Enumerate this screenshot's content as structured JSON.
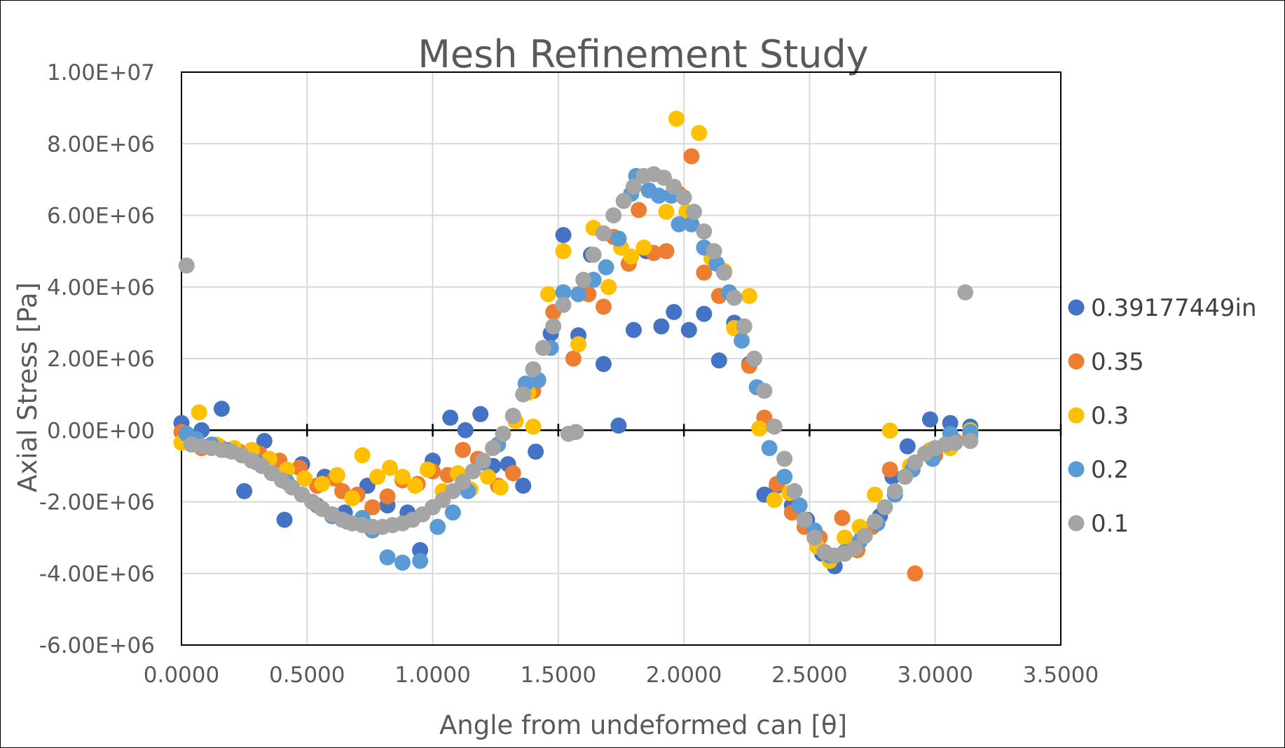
{
  "chart_data": {
    "type": "scatter",
    "title": "Mesh Refinement Study",
    "xlabel": "Angle from undeformed can [θ]",
    "ylabel": "Axial Stress [Pa]",
    "xlim": [
      0,
      3.5
    ],
    "ylim": [
      -6000000,
      10000000
    ],
    "x_tick_labels": [
      "0.0000",
      "0.5000",
      "1.0000",
      "1.5000",
      "2.0000",
      "2.5000",
      "3.0000",
      "3.5000"
    ],
    "y_tick_labels": [
      "1.00E+07",
      "8.00E+06",
      "6.00E+06",
      "4.00E+06",
      "2.00E+06",
      "0.00E+00",
      "-2.00E+06",
      "-4.00E+06",
      "-6.00E+06"
    ],
    "x_ticks": [
      0,
      0.5,
      1.0,
      1.5,
      2.0,
      2.5,
      3.0,
      3.5
    ],
    "y_ticks": [
      10000000,
      8000000,
      6000000,
      4000000,
      2000000,
      0,
      -2000000,
      -4000000,
      -6000000
    ],
    "grid": true,
    "legend_position": "right",
    "series": [
      {
        "name": "0.39177449in",
        "color": "#4472C4",
        "points": [
          [
            0.0,
            200000
          ],
          [
            0.08,
            0
          ],
          [
            0.16,
            600000
          ],
          [
            0.25,
            -1700000
          ],
          [
            0.33,
            -300000
          ],
          [
            0.41,
            -2500000
          ],
          [
            0.48,
            -950000
          ],
          [
            0.57,
            -1300000
          ],
          [
            0.65,
            -2300000
          ],
          [
            0.74,
            -1550000
          ],
          [
            0.82,
            -2100000
          ],
          [
            0.9,
            -2300000
          ],
          [
            0.95,
            -3350000
          ],
          [
            1.0,
            -850000
          ],
          [
            1.07,
            350000
          ],
          [
            1.13,
            0
          ],
          [
            1.19,
            450000
          ],
          [
            1.24,
            -1000000
          ],
          [
            1.3,
            -950000
          ],
          [
            1.36,
            -1550000
          ],
          [
            1.41,
            -600000
          ],
          [
            1.47,
            2700000
          ],
          [
            1.52,
            5450000
          ],
          [
            1.58,
            2650000
          ],
          [
            1.63,
            4900000
          ],
          [
            1.68,
            1850000
          ],
          [
            1.74,
            130000
          ],
          [
            1.8,
            2800000
          ],
          [
            1.85,
            5000000
          ],
          [
            1.91,
            2900000
          ],
          [
            1.96,
            3300000
          ],
          [
            2.02,
            2800000
          ],
          [
            2.08,
            3250000
          ],
          [
            2.14,
            1950000
          ],
          [
            2.2,
            3000000
          ],
          [
            2.26,
            1850000
          ],
          [
            2.32,
            -1800000
          ],
          [
            2.37,
            -1550000
          ],
          [
            2.43,
            -2100000
          ],
          [
            2.49,
            -2500000
          ],
          [
            2.55,
            -3450000
          ],
          [
            2.6,
            -3800000
          ],
          [
            2.66,
            -3200000
          ],
          [
            2.71,
            -3000000
          ],
          [
            2.78,
            -2400000
          ],
          [
            2.83,
            -1300000
          ],
          [
            2.89,
            -450000
          ],
          [
            2.98,
            300000
          ],
          [
            3.06,
            200000
          ],
          [
            3.14,
            100000
          ]
        ]
      },
      {
        "name": "0.35",
        "color": "#ED7D31",
        "points": [
          [
            0.0,
            -50000
          ],
          [
            0.08,
            -500000
          ],
          [
            0.15,
            -450000
          ],
          [
            0.23,
            -600000
          ],
          [
            0.31,
            -650000
          ],
          [
            0.39,
            -850000
          ],
          [
            0.47,
            -1050000
          ],
          [
            0.54,
            -1550000
          ],
          [
            0.61,
            -1350000
          ],
          [
            0.64,
            -1700000
          ],
          [
            0.7,
            -1800000
          ],
          [
            0.76,
            -2150000
          ],
          [
            0.82,
            -1850000
          ],
          [
            0.88,
            -1400000
          ],
          [
            0.94,
            -1500000
          ],
          [
            1.0,
            -1150000
          ],
          [
            1.06,
            -1250000
          ],
          [
            1.12,
            -550000
          ],
          [
            1.18,
            -800000
          ],
          [
            1.26,
            -1550000
          ],
          [
            1.32,
            -1200000
          ],
          [
            1.4,
            1100000
          ],
          [
            1.48,
            3300000
          ],
          [
            1.56,
            2000000
          ],
          [
            1.62,
            3800000
          ],
          [
            1.68,
            3450000
          ],
          [
            1.72,
            5400000
          ],
          [
            1.78,
            4650000
          ],
          [
            1.82,
            6150000
          ],
          [
            1.88,
            4950000
          ],
          [
            1.93,
            5000000
          ],
          [
            1.98,
            6600000
          ],
          [
            2.03,
            7650000
          ],
          [
            2.08,
            4400000
          ],
          [
            2.14,
            3750000
          ],
          [
            2.2,
            2850000
          ],
          [
            2.26,
            1800000
          ],
          [
            2.32,
            350000
          ],
          [
            2.37,
            -1500000
          ],
          [
            2.43,
            -2300000
          ],
          [
            2.48,
            -2700000
          ],
          [
            2.54,
            -3000000
          ],
          [
            2.58,
            -3500000
          ],
          [
            2.63,
            -2450000
          ],
          [
            2.69,
            -3350000
          ],
          [
            2.75,
            -2700000
          ],
          [
            2.82,
            -1100000
          ],
          [
            2.92,
            -4000000
          ],
          [
            3.0,
            -700000
          ],
          [
            3.08,
            -300000
          ],
          [
            3.14,
            -150000
          ]
        ]
      },
      {
        "name": "0.3",
        "color": "#FFC000",
        "points": [
          [
            0.0,
            -350000
          ],
          [
            0.07,
            500000
          ],
          [
            0.14,
            -400000
          ],
          [
            0.21,
            -500000
          ],
          [
            0.28,
            -550000
          ],
          [
            0.35,
            -800000
          ],
          [
            0.42,
            -1100000
          ],
          [
            0.49,
            -1350000
          ],
          [
            0.56,
            -1500000
          ],
          [
            0.62,
            -1250000
          ],
          [
            0.68,
            -1900000
          ],
          [
            0.72,
            -700000
          ],
          [
            0.78,
            -1300000
          ],
          [
            0.83,
            -1050000
          ],
          [
            0.88,
            -1300000
          ],
          [
            0.93,
            -1550000
          ],
          [
            0.98,
            -1100000
          ],
          [
            1.04,
            -1700000
          ],
          [
            1.1,
            -1200000
          ],
          [
            1.15,
            -1650000
          ],
          [
            1.22,
            -1300000
          ],
          [
            1.27,
            -1600000
          ],
          [
            1.33,
            250000
          ],
          [
            1.38,
            1050000
          ],
          [
            1.4,
            100000
          ],
          [
            1.46,
            3800000
          ],
          [
            1.52,
            5000000
          ],
          [
            1.58,
            2400000
          ],
          [
            1.64,
            5650000
          ],
          [
            1.7,
            4000000
          ],
          [
            1.75,
            5100000
          ],
          [
            1.79,
            4850000
          ],
          [
            1.84,
            5100000
          ],
          [
            1.93,
            6100000
          ],
          [
            1.97,
            8700000
          ],
          [
            2.01,
            6100000
          ],
          [
            2.06,
            8300000
          ],
          [
            2.11,
            4800000
          ],
          [
            2.16,
            4450000
          ],
          [
            2.2,
            2850000
          ],
          [
            2.26,
            3750000
          ],
          [
            2.3,
            50000
          ],
          [
            2.36,
            -1950000
          ],
          [
            2.42,
            -1750000
          ],
          [
            2.48,
            -2500000
          ],
          [
            2.53,
            -3250000
          ],
          [
            2.58,
            -3650000
          ],
          [
            2.64,
            -3000000
          ],
          [
            2.7,
            -2700000
          ],
          [
            2.76,
            -1800000
          ],
          [
            2.82,
            -10000
          ],
          [
            2.9,
            -1000000
          ],
          [
            2.98,
            -550000
          ],
          [
            3.06,
            -500000
          ],
          [
            3.14,
            0
          ]
        ]
      },
      {
        "name": "0.2",
        "color": "#5B9BD5",
        "points": [
          [
            0.02,
            -100000
          ],
          [
            0.06,
            -250000
          ],
          [
            0.12,
            -400000
          ],
          [
            0.18,
            -550000
          ],
          [
            0.24,
            -700000
          ],
          [
            0.3,
            -900000
          ],
          [
            0.36,
            -1200000
          ],
          [
            0.42,
            -1450000
          ],
          [
            0.48,
            -1800000
          ],
          [
            0.54,
            -2100000
          ],
          [
            0.6,
            -2400000
          ],
          [
            0.66,
            -2550000
          ],
          [
            0.72,
            -2450000
          ],
          [
            0.76,
            -2800000
          ],
          [
            0.82,
            -3550000
          ],
          [
            0.88,
            -3700000
          ],
          [
            0.95,
            -3650000
          ],
          [
            1.02,
            -2700000
          ],
          [
            1.08,
            -2300000
          ],
          [
            1.14,
            -1700000
          ],
          [
            1.2,
            -900000
          ],
          [
            1.26,
            -400000
          ],
          [
            1.32,
            400000
          ],
          [
            1.37,
            1300000
          ],
          [
            1.42,
            1400000
          ],
          [
            1.47,
            2300000
          ],
          [
            1.52,
            3850000
          ],
          [
            1.58,
            3800000
          ],
          [
            1.64,
            4200000
          ],
          [
            1.69,
            4550000
          ],
          [
            1.74,
            5350000
          ],
          [
            1.79,
            6600000
          ],
          [
            1.81,
            7100000
          ],
          [
            1.86,
            6700000
          ],
          [
            1.9,
            6550000
          ],
          [
            1.95,
            6550000
          ],
          [
            1.98,
            5750000
          ],
          [
            2.03,
            5750000
          ],
          [
            2.08,
            5100000
          ],
          [
            2.13,
            4650000
          ],
          [
            2.18,
            3850000
          ],
          [
            2.23,
            2500000
          ],
          [
            2.29,
            1200000
          ],
          [
            2.34,
            -500000
          ],
          [
            2.4,
            -1300000
          ],
          [
            2.46,
            -2100000
          ],
          [
            2.52,
            -2800000
          ],
          [
            2.58,
            -3500000
          ],
          [
            2.64,
            -3400000
          ],
          [
            2.7,
            -3100000
          ],
          [
            2.77,
            -2600000
          ],
          [
            2.84,
            -1800000
          ],
          [
            2.91,
            -1100000
          ],
          [
            2.99,
            -800000
          ],
          [
            3.06,
            -100000
          ],
          [
            3.14,
            -50000
          ]
        ]
      },
      {
        "name": "0.1",
        "color": "#A5A5A5",
        "points": [
          [
            0.02,
            4600000
          ],
          [
            0.04,
            -400000
          ],
          [
            0.08,
            -450000
          ],
          [
            0.12,
            -500000
          ],
          [
            0.16,
            -550000
          ],
          [
            0.2,
            -600000
          ],
          [
            0.24,
            -700000
          ],
          [
            0.28,
            -850000
          ],
          [
            0.32,
            -1000000
          ],
          [
            0.36,
            -1200000
          ],
          [
            0.4,
            -1400000
          ],
          [
            0.44,
            -1600000
          ],
          [
            0.48,
            -1800000
          ],
          [
            0.52,
            -2000000
          ],
          [
            0.56,
            -2200000
          ],
          [
            0.6,
            -2350000
          ],
          [
            0.64,
            -2500000
          ],
          [
            0.68,
            -2600000
          ],
          [
            0.72,
            -2650000
          ],
          [
            0.76,
            -2700000
          ],
          [
            0.8,
            -2700000
          ],
          [
            0.84,
            -2650000
          ],
          [
            0.88,
            -2600000
          ],
          [
            0.92,
            -2500000
          ],
          [
            0.96,
            -2350000
          ],
          [
            1.0,
            -2150000
          ],
          [
            1.04,
            -1950000
          ],
          [
            1.08,
            -1700000
          ],
          [
            1.12,
            -1450000
          ],
          [
            1.16,
            -1150000
          ],
          [
            1.2,
            -850000
          ],
          [
            1.24,
            -500000
          ],
          [
            1.28,
            -100000
          ],
          [
            1.32,
            400000
          ],
          [
            1.36,
            1000000
          ],
          [
            1.4,
            1700000
          ],
          [
            1.44,
            2300000
          ],
          [
            1.48,
            2900000
          ],
          [
            1.52,
            3500000
          ],
          [
            1.54,
            -100000
          ],
          [
            1.57,
            -50000
          ],
          [
            1.6,
            4200000
          ],
          [
            1.64,
            4900000
          ],
          [
            1.68,
            5500000
          ],
          [
            1.72,
            6000000
          ],
          [
            1.76,
            6400000
          ],
          [
            1.8,
            6800000
          ],
          [
            1.84,
            7100000
          ],
          [
            1.88,
            7150000
          ],
          [
            1.92,
            7050000
          ],
          [
            1.96,
            6800000
          ],
          [
            2.0,
            6500000
          ],
          [
            2.04,
            6100000
          ],
          [
            2.08,
            5550000
          ],
          [
            2.12,
            5000000
          ],
          [
            2.16,
            4400000
          ],
          [
            2.2,
            3700000
          ],
          [
            2.24,
            2900000
          ],
          [
            2.28,
            2000000
          ],
          [
            2.32,
            1100000
          ],
          [
            2.36,
            100000
          ],
          [
            2.4,
            -800000
          ],
          [
            2.44,
            -1700000
          ],
          [
            2.48,
            -2500000
          ],
          [
            2.52,
            -3000000
          ],
          [
            2.56,
            -3400000
          ],
          [
            2.6,
            -3500000
          ],
          [
            2.64,
            -3450000
          ],
          [
            2.68,
            -3300000
          ],
          [
            2.72,
            -2950000
          ],
          [
            2.76,
            -2550000
          ],
          [
            2.8,
            -2150000
          ],
          [
            2.84,
            -1700000
          ],
          [
            2.88,
            -1300000
          ],
          [
            2.92,
            -900000
          ],
          [
            2.96,
            -650000
          ],
          [
            3.0,
            -500000
          ],
          [
            3.04,
            -400000
          ],
          [
            3.08,
            -350000
          ],
          [
            3.12,
            3850000
          ],
          [
            3.14,
            -300000
          ]
        ]
      }
    ]
  }
}
